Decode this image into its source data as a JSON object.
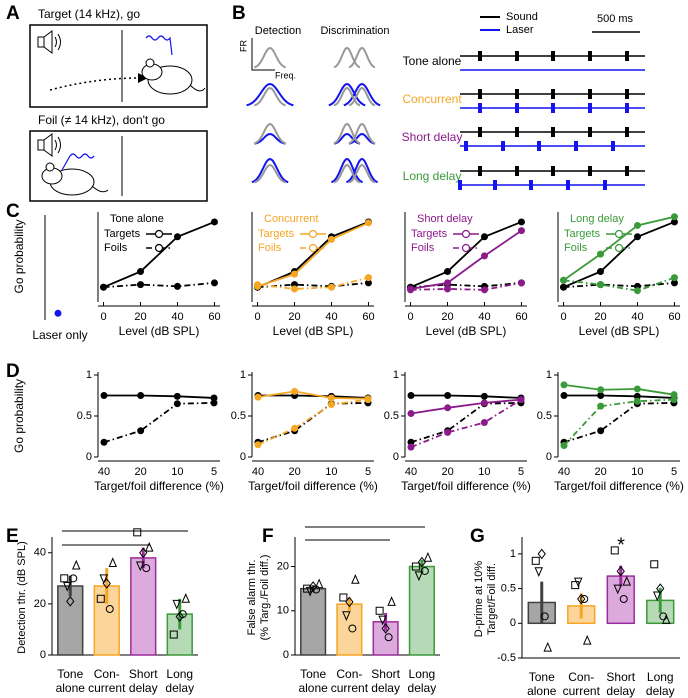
{
  "panel_a": {
    "label": "A",
    "target_text": "Target (14 kHz), go",
    "foil_text": "Foil (≠ 14 kHz), don't go"
  },
  "panel_b": {
    "label": "B",
    "columns": [
      "Detection",
      "Discrimination"
    ],
    "axis_y": "FR",
    "axis_x": "Freq.",
    "legend": [
      "Sound",
      "Laser"
    ],
    "scale_bar": "500 ms",
    "rows": [
      "Tone alone",
      "Concurrent",
      "Short delay",
      "Long delay"
    ],
    "row_colors": [
      "#000000",
      "#f5a623",
      "#8b1a8b",
      "#3a9a3a"
    ]
  },
  "chart_data": [
    {
      "type": "dot",
      "panel_label": "C",
      "ylabel": "Go probability",
      "categories": [
        "Laser only"
      ],
      "values": [
        0.13
      ],
      "color": "#1414f0",
      "ylim": [
        0,
        1
      ]
    },
    {
      "type": "line",
      "title": "Tone alone",
      "x": [
        0,
        20,
        40,
        60
      ],
      "xlim": [
        -3,
        63
      ],
      "xticks": [
        0,
        20,
        40,
        60
      ],
      "xlabel": "Level (dB SPL)",
      "ylim": [
        0,
        1
      ],
      "series": [
        {
          "name": "Targets",
          "color": "#000000",
          "style": "solid",
          "values": [
            0.17,
            0.35,
            0.75,
            0.92
          ]
        },
        {
          "name": "Foils",
          "color": "#000000",
          "style": "dashdot",
          "values": [
            0.17,
            0.2,
            0.18,
            0.22
          ]
        }
      ]
    },
    {
      "type": "line",
      "title": "Concurrent",
      "x": [
        0,
        20,
        40,
        60
      ],
      "xlim": [
        -3,
        63
      ],
      "xticks": [
        0,
        20,
        40,
        60
      ],
      "xlabel": "Level (dB SPL)",
      "ylim": [
        0,
        1
      ],
      "series": [
        {
          "color": "#000000",
          "style": "solid",
          "values": [
            0.17,
            0.35,
            0.75,
            0.92
          ]
        },
        {
          "color": "#000000",
          "style": "dashdot",
          "values": [
            0.17,
            0.2,
            0.18,
            0.22
          ]
        },
        {
          "name": "Targets",
          "color": "#f5a623",
          "style": "solid",
          "values": [
            0.18,
            0.32,
            0.72,
            0.91
          ]
        },
        {
          "name": "Foils",
          "color": "#f5a623",
          "style": "dashdot",
          "values": [
            0.2,
            0.15,
            0.17,
            0.28
          ]
        }
      ]
    },
    {
      "type": "line",
      "title": "Short delay",
      "x": [
        0,
        20,
        40,
        60
      ],
      "xlim": [
        -3,
        63
      ],
      "xticks": [
        0,
        20,
        40,
        60
      ],
      "xlabel": "Level (dB SPL)",
      "ylim": [
        0,
        1
      ],
      "series": [
        {
          "color": "#000000",
          "style": "solid",
          "values": [
            0.17,
            0.35,
            0.75,
            0.92
          ]
        },
        {
          "color": "#000000",
          "style": "dashdot",
          "values": [
            0.17,
            0.2,
            0.18,
            0.22
          ]
        },
        {
          "name": "Targets",
          "color": "#8b1a8b",
          "style": "solid",
          "values": [
            0.15,
            0.22,
            0.53,
            0.82
          ]
        },
        {
          "name": "Foils",
          "color": "#8b1a8b",
          "style": "dashdot",
          "values": [
            0.14,
            0.15,
            0.14,
            0.22
          ]
        }
      ]
    },
    {
      "type": "line",
      "title": "Long delay",
      "x": [
        0,
        20,
        40,
        60
      ],
      "xlim": [
        -3,
        63
      ],
      "xticks": [
        0,
        20,
        40,
        60
      ],
      "xlabel": "Level (dB SPL)",
      "ylim": [
        0,
        1
      ],
      "series": [
        {
          "color": "#000000",
          "style": "solid",
          "values": [
            0.17,
            0.35,
            0.75,
            0.92
          ]
        },
        {
          "color": "#000000",
          "style": "dashdot",
          "values": [
            0.17,
            0.2,
            0.18,
            0.22
          ]
        },
        {
          "name": "Targets",
          "color": "#3a9a3a",
          "style": "solid",
          "values": [
            0.25,
            0.55,
            0.88,
            0.98
          ]
        },
        {
          "name": "Foils",
          "color": "#3a9a3a",
          "style": "dashdot",
          "values": [
            0.25,
            0.2,
            0.13,
            0.28
          ]
        }
      ]
    },
    {
      "type": "line",
      "panel_label": "D",
      "ylabel": "Go probability",
      "categories": [
        "40",
        "20",
        "10",
        "5"
      ],
      "xlabel": "Target/foil difference (%)",
      "ylim": [
        0,
        1
      ],
      "yticks": [
        0,
        0.5,
        1
      ],
      "series": [
        {
          "color": "#000000",
          "style": "solid",
          "values": [
            0.75,
            0.75,
            0.74,
            0.72
          ]
        },
        {
          "color": "#000000",
          "style": "dashdot",
          "values": [
            0.18,
            0.32,
            0.65,
            0.66
          ]
        }
      ]
    },
    {
      "type": "line",
      "categories": [
        "40",
        "20",
        "10",
        "5"
      ],
      "xlabel": "Target/foil difference (%)",
      "ylim": [
        0,
        1
      ],
      "yticks": [
        0,
        0.5,
        1
      ],
      "series": [
        {
          "color": "#000000",
          "style": "solid",
          "values": [
            0.75,
            0.75,
            0.74,
            0.72
          ]
        },
        {
          "color": "#000000",
          "style": "dashdot",
          "values": [
            0.18,
            0.32,
            0.65,
            0.66
          ]
        },
        {
          "color": "#f5a623",
          "style": "solid",
          "values": [
            0.73,
            0.8,
            0.72,
            0.71
          ]
        },
        {
          "color": "#f5a623",
          "style": "dashdot",
          "values": [
            0.15,
            0.35,
            0.64,
            0.7
          ]
        }
      ]
    },
    {
      "type": "line",
      "categories": [
        "40",
        "20",
        "10",
        "5"
      ],
      "xlabel": "Target/foil difference (%)",
      "ylim": [
        0,
        1
      ],
      "yticks": [
        0,
        0.5,
        1
      ],
      "series": [
        {
          "color": "#000000",
          "style": "solid",
          "values": [
            0.75,
            0.75,
            0.74,
            0.72
          ]
        },
        {
          "color": "#000000",
          "style": "dashdot",
          "values": [
            0.18,
            0.32,
            0.65,
            0.66
          ]
        },
        {
          "color": "#8b1a8b",
          "style": "solid",
          "values": [
            0.53,
            0.6,
            0.66,
            0.7
          ]
        },
        {
          "color": "#8b1a8b",
          "style": "dashdot",
          "values": [
            0.12,
            0.3,
            0.42,
            0.7
          ]
        }
      ]
    },
    {
      "type": "line",
      "categories": [
        "40",
        "20",
        "10",
        "5"
      ],
      "xlabel": "Target/foil difference (%)",
      "ylim": [
        0,
        1
      ],
      "yticks": [
        0,
        0.5,
        1
      ],
      "series": [
        {
          "color": "#000000",
          "style": "solid",
          "values": [
            0.75,
            0.75,
            0.74,
            0.72
          ]
        },
        {
          "color": "#000000",
          "style": "dashdot",
          "values": [
            0.18,
            0.32,
            0.65,
            0.66
          ]
        },
        {
          "color": "#3a9a3a",
          "style": "solid",
          "values": [
            0.88,
            0.82,
            0.83,
            0.76
          ]
        },
        {
          "color": "#3a9a3a",
          "style": "dashdot",
          "values": [
            0.14,
            0.62,
            0.68,
            0.7
          ]
        }
      ]
    },
    {
      "type": "bar",
      "panel_label": "E",
      "ylabel": [
        "Detection thr. (dB SPL)"
      ],
      "categories": [
        [
          "Tone",
          "alone"
        ],
        [
          "Con-",
          "current"
        ],
        [
          "Short",
          "delay"
        ],
        [
          "Long",
          "delay"
        ]
      ],
      "values": [
        27,
        27,
        38,
        16
      ],
      "errors": [
        4,
        7,
        4,
        6
      ],
      "points": [
        [
          30,
          27,
          21,
          30,
          35
        ],
        [
          22,
          30,
          28,
          18,
          36
        ],
        [
          48,
          35,
          40,
          34,
          42
        ],
        [
          8,
          20,
          15,
          16,
          22
        ]
      ],
      "point_markers": [
        "square",
        "triangle-down",
        "diamond",
        "circle",
        "triangle"
      ],
      "colors": [
        "#404040",
        "#f5a623",
        "#9b2d9b",
        "#3a9a3a"
      ],
      "fills": [
        "#a6a6a6",
        "#fbd59a",
        "#dcaadc",
        "#b5dab5"
      ],
      "ylim": [
        0,
        45
      ],
      "yticks": [
        0,
        20,
        40
      ]
    },
    {
      "type": "bar",
      "panel_label": "F",
      "ylabel": [
        "False alarm thr.",
        "(% Targ./Foil diff.)"
      ],
      "categories": [
        [
          "Tone",
          "alone"
        ],
        [
          "Con-",
          "current"
        ],
        [
          "Short",
          "delay"
        ],
        [
          "Long",
          "delay"
        ]
      ],
      "values": [
        15,
        11.5,
        7.5,
        20
      ],
      "errors": [
        0.8,
        1.5,
        2,
        1.5
      ],
      "points": [
        [
          15,
          14.5,
          15.5,
          14.8,
          16
        ],
        [
          13,
          9,
          12,
          6,
          17
        ],
        [
          10,
          8,
          6,
          4,
          12
        ],
        [
          20,
          18,
          21,
          19,
          22
        ]
      ],
      "point_markers": [
        "square",
        "triangle-down",
        "diamond",
        "circle",
        "triangle"
      ],
      "colors": [
        "#404040",
        "#f5a623",
        "#9b2d9b",
        "#3a9a3a"
      ],
      "fills": [
        "#a6a6a6",
        "#fbd59a",
        "#dcaadc",
        "#b5dab5"
      ],
      "ylim": [
        0,
        26
      ],
      "yticks": [
        0,
        10,
        20
      ]
    },
    {
      "type": "bar",
      "panel_label": "G",
      "ylabel": [
        "D-prime at 10%",
        "Target/Foil diff."
      ],
      "annotation": "*",
      "categories": [
        [
          "Tone",
          "alone"
        ],
        [
          "Con-",
          "current"
        ],
        [
          "Short",
          "delay"
        ],
        [
          "Long",
          "delay"
        ]
      ],
      "values": [
        0.3,
        0.25,
        0.68,
        0.33
      ],
      "errors": [
        0.3,
        0.18,
        0.15,
        0.18
      ],
      "points": [
        [
          0.9,
          0.75,
          1,
          0.1,
          -0.35
        ],
        [
          0.55,
          0.6,
          0.35,
          0.35,
          -0.25
        ],
        [
          1.05,
          0.5,
          0.75,
          0.35,
          0.6
        ],
        [
          0.85,
          0.4,
          0.5,
          0.1,
          0.05
        ]
      ],
      "point_markers": [
        "square",
        "triangle-down",
        "diamond",
        "circle",
        "triangle"
      ],
      "colors": [
        "#404040",
        "#f5a623",
        "#9b2d9b",
        "#3a9a3a"
      ],
      "fills": [
        "#a6a6a6",
        "#fbd59a",
        "#dcaadc",
        "#b5dab5"
      ],
      "ylim": [
        -0.5,
        1.2
      ],
      "yticks": [
        -0.5,
        0,
        0.5,
        1
      ]
    }
  ]
}
